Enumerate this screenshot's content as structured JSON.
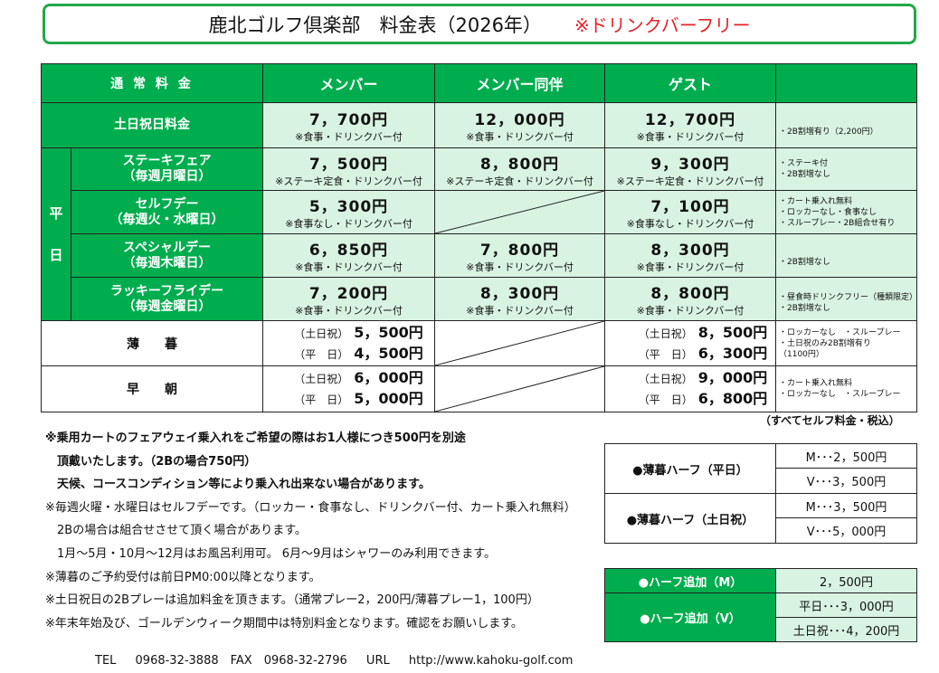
{
  "title": {
    "main": "鹿北ゴルフ倶楽部　料金表（2026年）",
    "drink": "※ドリンクバーフリー"
  },
  "header": [
    "通 常 料 金",
    "メンバー",
    "メンバー同伴",
    "ゲスト",
    ""
  ],
  "weekend": {
    "label": "土日祝日料金",
    "member": "7，700円",
    "member_note": "※食事・ドリンクバー付",
    "companion": "12，000円",
    "companion_note": "※食事・ドリンクバー付",
    "guest": "12，700円",
    "guest_note": "※食事・ドリンクバー付",
    "remarks": [
      "・2B割増有り（2,200円）"
    ]
  },
  "weekday_label": [
    "平",
    "日"
  ],
  "weekday": [
    {
      "name": "ステーキフェア",
      "sub": "（毎週月曜日）",
      "member": "7，500円",
      "member_note": "※ステーキ定食・ドリンクバー付",
      "companion": "8，800円",
      "companion_note": "※ステーキ定食・ドリンクバー付",
      "guest": "9，300円",
      "guest_note": "※ステーキ定食・ドリンクバー付",
      "remarks": [
        "・ステーキ付",
        "・2B割増なし"
      ]
    },
    {
      "name": "セルフデー",
      "sub": "（毎週火・水曜日）",
      "member": "5，300円",
      "member_note": "※食事なし・ドリンクバー付",
      "companion": "",
      "companion_note": "",
      "guest": "7，100円",
      "guest_note": "※食事なし・ドリンクバー付",
      "remarks": [
        "・カート乗入れ無料",
        "・ロッカーなし・食事なし",
        "・スループレー・2B組合せ有り"
      ]
    },
    {
      "name": "スペシャルデー",
      "sub": "（毎週木曜日）",
      "member": "6，850円",
      "member_note": "※食事・ドリンクバー付",
      "companion": "7，800円",
      "companion_note": "※食事・ドリンクバー付",
      "guest": "8，300円",
      "guest_note": "※食事・ドリンクバー付",
      "remarks": [
        "",
        "・2B割増なし"
      ]
    },
    {
      "name": "ラッキーフライデー",
      "sub": "（毎週金曜日）",
      "member": "7，200円",
      "member_note": "※食事・ドリンクバー付",
      "companion": "8，300円",
      "companion_note": "※食事・ドリンクバー付",
      "guest": "8，800円",
      "guest_note": "※食事・ドリンクバー付",
      "remarks": [
        "・昼食時ドリンクフリー（種類限定）",
        "・2B割増なし"
      ]
    }
  ],
  "twilight": {
    "label": "薄　　暮",
    "member": [
      {
        "k": "（土日祝）",
        "v": "5，500円"
      },
      {
        "k": "（平　日）",
        "v": "4，500円"
      }
    ],
    "guest": [
      {
        "k": "（土日祝）",
        "v": "8，500円"
      },
      {
        "k": "（平　日）",
        "v": "6，300円"
      }
    ],
    "remarks": [
      "・ロッカーなし　・スループレー",
      "・土日祝のみ2B割増有り",
      "（1100円）"
    ]
  },
  "early": {
    "label": "早　　朝",
    "member": [
      {
        "k": "（土日祝）",
        "v": "6，000円"
      },
      {
        "k": "（平　日）",
        "v": "5，000円"
      }
    ],
    "guest": [
      {
        "k": "（土日祝）",
        "v": "9，000円"
      },
      {
        "k": "（平　日）",
        "v": "6，800円"
      }
    ],
    "remarks": [
      "・カート乗入れ無料",
      "・ロッカーなし　・スループレー"
    ]
  },
  "tax_note": "（すべてセルフ料金・税込）",
  "notes": [
    "※乗用カートのフェアウェイ乗入れをご希望の際はお1人様につき500円を別途",
    "　頂戴いたします。（2Bの場合750円）",
    "　天候、コースコンディション等により乗入れ出来ない場合があります。",
    "※毎週火曜・水曜日はセルフデーです。（ロッカー・食事なし、ドリンクバー付、カート乗入れ無料）",
    "　2Bの場合は組合せさせて頂く場合があります。",
    "　1月～5月・10月～12月はお風呂利用可。 6月～9月はシャワーのみ利用できます。",
    "※薄暮のご予約受付は前日PM0:00以降となります。",
    "※土日祝日の2Bプレーは追加料金を頂きます。（通常プレー2，200円/薄暮プレー1，100円）",
    "※年末年始及び、ゴールデンウィーク期間中は特別料金となります。確認をお願いします。"
  ],
  "half_twilight": [
    {
      "label": "●薄暮ハーフ（平日）",
      "values": [
        "M･･･2，500円",
        "V･･･3，500円"
      ]
    },
    {
      "label": "●薄暮ハーフ（土日祝）",
      "values": [
        "M･･･3，500円",
        "V･･･5，000円"
      ]
    }
  ],
  "half_add": [
    {
      "label": "●ハーフ追加（M）",
      "values": [
        "2，500円"
      ]
    },
    {
      "label": "●ハーフ追加（V）",
      "values": [
        "平日･･･3，000円",
        "土日祝･･･4，200円"
      ]
    }
  ],
  "footer": "TEL　 0968-32-3888　FAX　0968-32-2796　 URL　 http://www.kahoku-golf.com",
  "colors": {
    "green": "#00ad4e",
    "light_green": "#d8f3e2",
    "red": "#e8202a"
  }
}
